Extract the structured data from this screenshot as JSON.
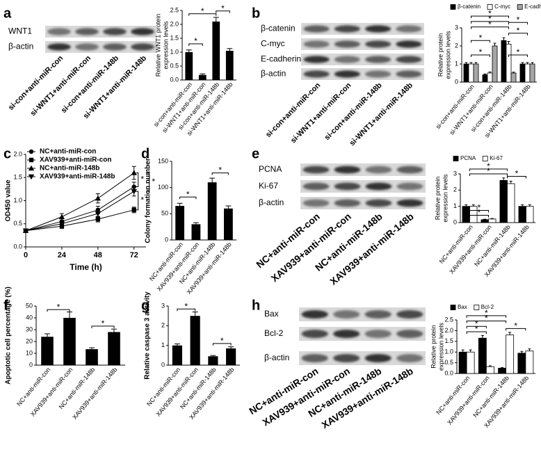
{
  "panel_labels": [
    "a",
    "b",
    "c",
    "d",
    "e",
    "f",
    "g",
    "h"
  ],
  "blots": [
    {
      "rows": [
        "WNT1",
        "β-actin"
      ],
      "lanes": [
        "si-con+anti-miR-con",
        "si-WNT1+anti-miR-con",
        "si-con+anti-miR-148b",
        "si-WNT1+anti-miR-148b"
      ]
    },
    {
      "rows": [
        "β-catenin",
        "C-myc",
        "E-cadherin",
        "β-actin"
      ],
      "lanes": [
        "si-con+anti-miR-con",
        "si-WNT1+anti-miR-con",
        "si-con+anti-miR-148b",
        "si-WNT1+anti-miR-148b"
      ]
    },
    {
      "rows": [
        "PCNA",
        "Ki-67",
        "β-actin"
      ],
      "lanes": [
        "NC+anti-miR-con",
        "XAV939+anti-miR-con",
        "NC+anti-miR-148b",
        "XAV939+anti-miR-148b"
      ]
    },
    {
      "rows": [
        "Bax",
        "Bcl-2",
        "β-actin"
      ],
      "lanes": [
        "NC+anti-miR-con",
        "XAV939+anti-miR-con",
        "NC+anti-miR-148b",
        "XAV939+anti-miR-148b"
      ]
    }
  ],
  "chart_data": [
    {
      "type": "bar",
      "ylabel": [
        "Relative WNT1 protein",
        "expression levels"
      ],
      "categories": [
        "si-con+anti-miR-con",
        "si-WNT1+anti-miR-con",
        "si-con+anti-miR-148b",
        "si-WNT1+anti-miR-148b"
      ],
      "values": [
        1.0,
        0.18,
        2.1,
        1.05
      ],
      "errors": [
        0.08,
        0.04,
        0.15,
        0.08
      ],
      "color": "#000000",
      "ylim": [
        0,
        2.5
      ],
      "yticks": [
        {
          "value": 0,
          "label": "0.0"
        },
        {
          "value": 0.5,
          "label": "0.5"
        },
        {
          "value": 1,
          "label": "1.0"
        },
        {
          "value": 1.5,
          "label": "1.5"
        },
        {
          "value": 2,
          "label": "2.0"
        },
        {
          "value": 2.5,
          "label": "2.5"
        }
      ],
      "annotations": [
        "*",
        "*",
        "*"
      ]
    },
    {
      "type": "bar",
      "ylabel": [
        "Relative protein",
        "expression levels"
      ],
      "categories": [
        "si-con+anti-miR-con",
        "si-WNT1+anti-miR-con",
        "si-con+anti-miR-148b",
        "si-WNT1+anti-miR-148b"
      ],
      "series": [
        {
          "name": "β-catenin",
          "color": "#000000",
          "values": [
            1.0,
            0.4,
            2.3,
            1.0
          ],
          "errors": [
            0.08,
            0.05,
            0.15,
            0.08
          ]
        },
        {
          "name": "C-myc",
          "color": "#ffffff",
          "values": [
            1.0,
            0.5,
            2.1,
            1.0
          ],
          "errors": [
            0.08,
            0.06,
            0.15,
            0.08
          ]
        },
        {
          "name": "E-cadherin",
          "color": "#a6a6a6",
          "values": [
            1.0,
            2.0,
            0.5,
            1.0
          ],
          "errors": [
            0.08,
            0.15,
            0.05,
            0.08
          ]
        }
      ],
      "ylim": [
        0,
        3
      ],
      "yticks": [
        0,
        1,
        2,
        3
      ],
      "annotations": [
        "*",
        "*",
        "*",
        "*",
        "*",
        "*",
        "*",
        "*"
      ]
    },
    {
      "type": "line",
      "xlabel": "Time (h)",
      "ylabel": "OD450 value",
      "x": [
        0,
        24,
        48,
        72
      ],
      "xlim": [
        0,
        80
      ],
      "xticks": [
        0,
        24,
        48,
        72
      ],
      "series": [
        {
          "name": "NC+anti-miR-con",
          "marker": "circle",
          "color": "#000000",
          "values": [
            0.35,
            0.55,
            0.8,
            1.3
          ],
          "errors": [
            0.03,
            0.06,
            0.08,
            0.1
          ]
        },
        {
          "name": "XAV939+anti-miR-con",
          "marker": "square",
          "color": "#000000",
          "values": [
            0.35,
            0.45,
            0.6,
            0.8
          ],
          "errors": [
            0.03,
            0.05,
            0.06,
            0.06
          ]
        },
        {
          "name": "NC+anti-miR-148b",
          "marker": "triangle-up",
          "color": "#000000",
          "values": [
            0.35,
            0.65,
            1.05,
            1.6
          ],
          "errors": [
            0.03,
            0.07,
            0.1,
            0.14
          ]
        },
        {
          "name": "XAV939+anti-miR-148b",
          "marker": "triangle-down",
          "color": "#000000",
          "values": [
            0.35,
            0.5,
            0.72,
            1.2
          ],
          "errors": [
            0.03,
            0.05,
            0.07,
            0.1
          ]
        }
      ],
      "ylim": [
        0,
        2
      ],
      "yticks": [
        {
          "value": 0,
          "label": "0.0"
        },
        {
          "value": 0.5,
          "label": "0.5"
        },
        {
          "value": 1,
          "label": "1.0"
        },
        {
          "value": 1.5,
          "label": "1.5"
        },
        {
          "value": 2,
          "label": "2.0"
        }
      ],
      "annotations": [
        "*",
        "*",
        "*"
      ]
    },
    {
      "type": "bar",
      "ylabel": "Colony formation number",
      "categories": [
        "NC+anti-miR-con",
        "XAV939+anti-miR-con",
        "NC+anti-miR-148b",
        "XAV939+anti-miR-148b"
      ],
      "values": [
        65,
        30,
        110,
        60
      ],
      "errors": [
        5,
        3,
        8,
        5
      ],
      "color": "#000000",
      "ylim": [
        0,
        150
      ],
      "yticks": [
        0,
        50,
        100,
        150
      ],
      "annotations": [
        "*",
        "*"
      ]
    },
    {
      "type": "bar",
      "ylabel": [
        "Relative protein",
        "expression levels"
      ],
      "categories": [
        "NC+anti-miR-con",
        "XAV939+anti-miR-con",
        "NC+anti-miR-148b",
        "XAV939+anti-miR-148b"
      ],
      "series": [
        {
          "name": "PCNA",
          "color": "#000000",
          "values": [
            1.0,
            0.18,
            2.6,
            1.0
          ],
          "errors": [
            0.1,
            0.03,
            0.15,
            0.1
          ]
        },
        {
          "name": "Ki-67",
          "color": "#ffffff",
          "values": [
            1.0,
            0.22,
            2.4,
            1.0
          ],
          "errors": [
            0.1,
            0.03,
            0.15,
            0.1
          ]
        }
      ],
      "ylim": [
        0,
        3
      ],
      "yticks": [
        0,
        1,
        2,
        3
      ],
      "annotations": [
        "*",
        "*",
        "*",
        "*",
        "*"
      ]
    },
    {
      "type": "bar",
      "ylabel": "Apoptotic cell percentage (%)",
      "categories": [
        "NC+anti-miR-con",
        "XAV939+anti-miR-con",
        "NC+anti-miR-148b",
        "XAV939+anti-miR-148b"
      ],
      "values": [
        24,
        40,
        13.5,
        28
      ],
      "errors": [
        2.5,
        5,
        1.2,
        2.5
      ],
      "color": "#000000",
      "ylim": [
        0,
        50
      ],
      "yticks": [
        0,
        10,
        20,
        30,
        40,
        50
      ],
      "annotations": [
        "*",
        "*"
      ]
    },
    {
      "type": "bar",
      "ylabel": "Relative caspase 3 activity",
      "categories": [
        "NC+anti-miR-con",
        "XAV939+anti-miR-con",
        "NC+anti-miR-148b",
        "XAV939+anti-miR-148b"
      ],
      "values": [
        1.0,
        2.5,
        0.45,
        0.85
      ],
      "errors": [
        0.08,
        0.2,
        0.04,
        0.08
      ],
      "color": "#000000",
      "ylim": [
        0,
        3
      ],
      "yticks": [
        0,
        1,
        2,
        3
      ],
      "annotations": [
        "*",
        "*"
      ]
    },
    {
      "type": "bar",
      "ylabel": [
        "Relative protein",
        "expression levels"
      ],
      "categories": [
        "NC+anti-miR-con",
        "XAV939+anti-miR-con",
        "NC+anti-miR-148b",
        "XAV939+anti-miR-148b"
      ],
      "series": [
        {
          "name": "Bax",
          "color": "#000000",
          "values": [
            1.0,
            1.65,
            0.25,
            0.95
          ],
          "errors": [
            0.1,
            0.12,
            0.03,
            0.08
          ]
        },
        {
          "name": "Bcl-2",
          "color": "#ffffff",
          "values": [
            1.0,
            0.32,
            1.8,
            1.05
          ],
          "errors": [
            0.1,
            0.04,
            0.12,
            0.1
          ]
        }
      ],
      "ylim": [
        0,
        2.5
      ],
      "yticks": [
        {
          "value": 0,
          "label": "0.0"
        },
        {
          "value": 0.5,
          "label": "0.5"
        },
        {
          "value": 1,
          "label": "1.0"
        },
        {
          "value": 1.5,
          "label": "1.5"
        },
        {
          "value": 2,
          "label": "2.0"
        },
        {
          "value": 2.5,
          "label": "2.5"
        }
      ],
      "annotations": [
        "*",
        "*",
        "*",
        "*",
        "*"
      ]
    }
  ]
}
